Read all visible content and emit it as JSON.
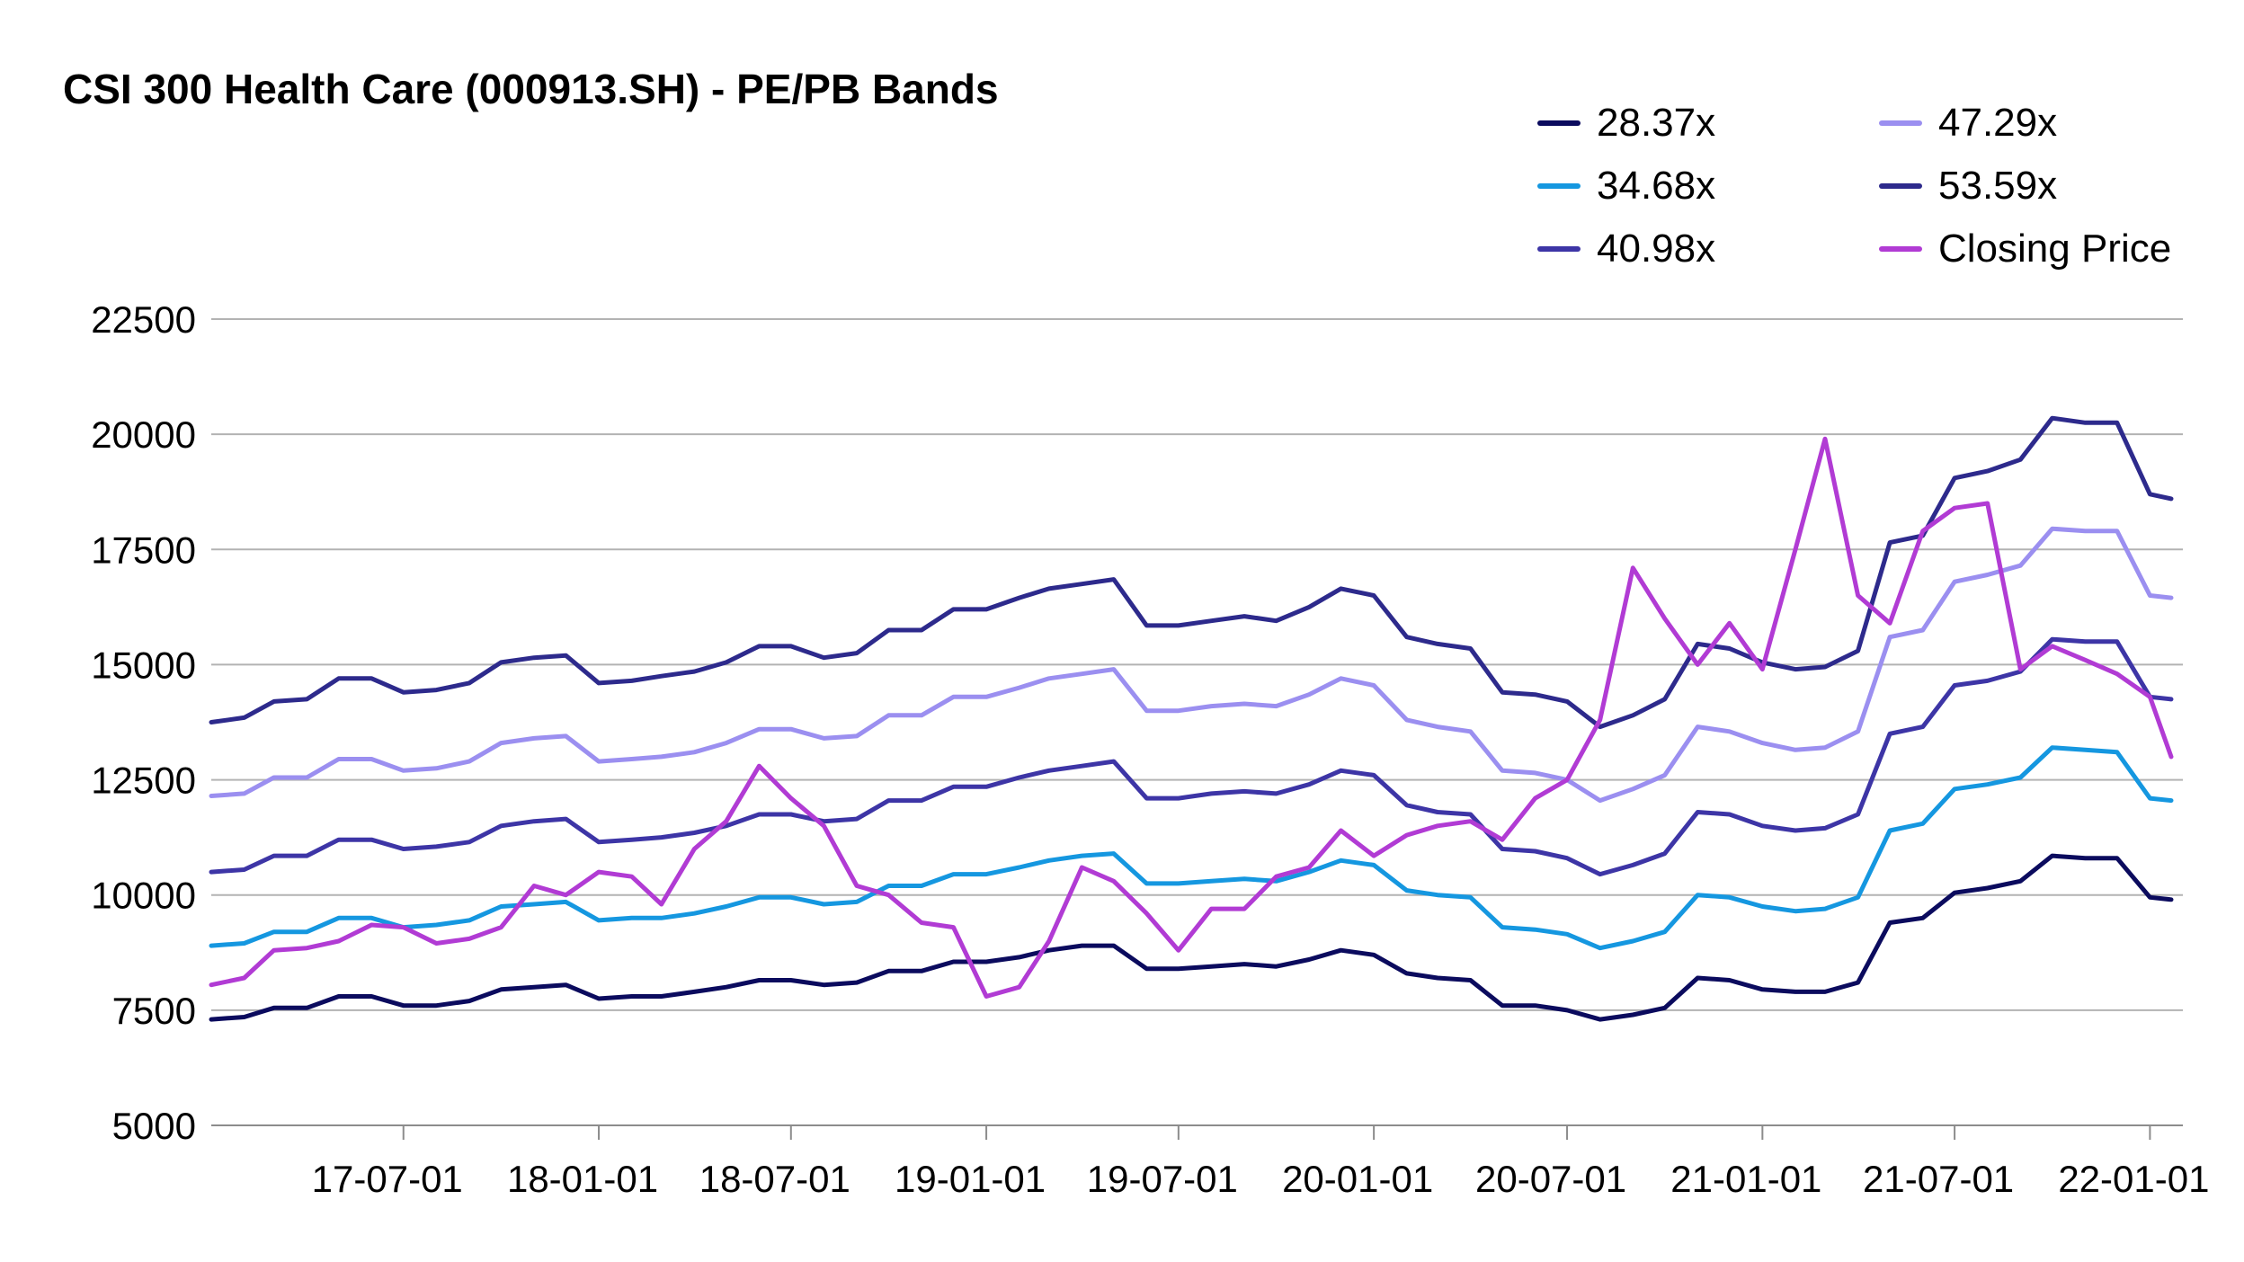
{
  "chart_data": {
    "type": "line",
    "title": "CSI 300 Health Care (000913.SH) - PE/PB Bands",
    "xlabel": "",
    "ylabel": "",
    "ylim": [
      5000,
      22500
    ],
    "yticks": [
      5000,
      7500,
      10000,
      12500,
      15000,
      17500,
      20000,
      22500
    ],
    "xlim": [
      "2017-01-01",
      "2022-02-01"
    ],
    "xticks": [
      "2017-07-01",
      "2018-01-01",
      "2018-07-01",
      "2019-01-01",
      "2019-07-01",
      "2020-01-01",
      "2020-07-01",
      "2021-01-01",
      "2021-07-01",
      "2022-01-01"
    ],
    "xtick_labels": [
      "17-07-01",
      "18-01-01",
      "18-07-01",
      "19-01-01",
      "19-07-01",
      "20-01-01",
      "20-07-01",
      "21-01-01",
      "21-07-01",
      "22-01-01"
    ],
    "grid": true,
    "legend_position": "top-right",
    "x": [
      "2017-01-01",
      "2017-02-01",
      "2017-03-01",
      "2017-04-01",
      "2017-05-01",
      "2017-06-01",
      "2017-07-01",
      "2017-08-01",
      "2017-09-01",
      "2017-10-01",
      "2017-11-01",
      "2017-12-01",
      "2018-01-01",
      "2018-02-01",
      "2018-03-01",
      "2018-04-01",
      "2018-05-01",
      "2018-06-01",
      "2018-07-01",
      "2018-08-01",
      "2018-09-01",
      "2018-10-01",
      "2018-11-01",
      "2018-12-01",
      "2019-01-01",
      "2019-02-01",
      "2019-03-01",
      "2019-04-01",
      "2019-05-01",
      "2019-06-01",
      "2019-07-01",
      "2019-08-01",
      "2019-09-01",
      "2019-10-01",
      "2019-11-01",
      "2019-12-01",
      "2020-01-01",
      "2020-02-01",
      "2020-03-01",
      "2020-04-01",
      "2020-05-01",
      "2020-06-01",
      "2020-07-01",
      "2020-08-01",
      "2020-09-01",
      "2020-10-01",
      "2020-11-01",
      "2020-12-01",
      "2021-01-01",
      "2021-02-01",
      "2021-03-01",
      "2021-04-01",
      "2021-05-01",
      "2021-06-01",
      "2021-07-01",
      "2021-08-01",
      "2021-09-01",
      "2021-10-01",
      "2021-11-01",
      "2021-12-01",
      "2022-01-01",
      "2022-01-21"
    ],
    "series": [
      {
        "name": "28.37x",
        "color": "#0b0b5e",
        "values": [
          7300,
          7350,
          7550,
          7550,
          7800,
          7800,
          7600,
          7600,
          7700,
          7950,
          8000,
          8050,
          7750,
          7800,
          7800,
          7900,
          8000,
          8150,
          8150,
          8050,
          8100,
          8350,
          8350,
          8550,
          8550,
          8650,
          8800,
          8900,
          8900,
          8400,
          8400,
          8450,
          8500,
          8450,
          8600,
          8800,
          8700,
          8300,
          8200,
          8150,
          7600,
          7600,
          7500,
          7300,
          7400,
          7550,
          8200,
          8150,
          7950,
          7900,
          7900,
          8100,
          9400,
          9500,
          10050,
          10150,
          10300,
          10850,
          10800,
          10800,
          9950,
          9900
        ]
      },
      {
        "name": "34.68x",
        "color": "#1597e0",
        "values": [
          8900,
          8950,
          9200,
          9200,
          9500,
          9500,
          9300,
          9350,
          9450,
          9750,
          9800,
          9850,
          9450,
          9500,
          9500,
          9600,
          9750,
          9950,
          9950,
          9800,
          9850,
          10200,
          10200,
          10450,
          10450,
          10600,
          10750,
          10850,
          10900,
          10250,
          10250,
          10300,
          10350,
          10300,
          10500,
          10750,
          10650,
          10100,
          10000,
          9950,
          9300,
          9250,
          9150,
          8850,
          9000,
          9200,
          10000,
          9950,
          9750,
          9650,
          9700,
          9950,
          11400,
          11550,
          12300,
          12400,
          12550,
          13200,
          13150,
          13100,
          12100,
          12050
        ]
      },
      {
        "name": "40.98x",
        "color": "#3d35a6",
        "values": [
          10500,
          10550,
          10850,
          10850,
          11200,
          11200,
          11000,
          11050,
          11150,
          11500,
          11600,
          11650,
          11150,
          11200,
          11250,
          11350,
          11500,
          11750,
          11750,
          11600,
          11650,
          12050,
          12050,
          12350,
          12350,
          12550,
          12700,
          12800,
          12900,
          12100,
          12100,
          12200,
          12250,
          12200,
          12400,
          12700,
          12600,
          11950,
          11800,
          11750,
          11000,
          10950,
          10800,
          10450,
          10650,
          10900,
          11800,
          11750,
          11500,
          11400,
          11450,
          11750,
          13500,
          13650,
          14550,
          14650,
          14850,
          15550,
          15500,
          15500,
          14300,
          14250
        ]
      },
      {
        "name": "47.29x",
        "color": "#9b8ff0",
        "values": [
          12150,
          12200,
          12550,
          12550,
          12950,
          12950,
          12700,
          12750,
          12900,
          13300,
          13400,
          13450,
          12900,
          12950,
          13000,
          13100,
          13300,
          13600,
          13600,
          13400,
          13450,
          13900,
          13900,
          14300,
          14300,
          14500,
          14700,
          14800,
          14900,
          14000,
          14000,
          14100,
          14150,
          14100,
          14350,
          14700,
          14550,
          13800,
          13650,
          13550,
          12700,
          12650,
          12500,
          12050,
          12300,
          12600,
          13650,
          13550,
          13300,
          13150,
          13200,
          13550,
          15600,
          15750,
          16800,
          16950,
          17150,
          17950,
          17900,
          17900,
          16500,
          16450
        ]
      },
      {
        "name": "53.59x",
        "color": "#2d2a8c",
        "values": [
          13750,
          13850,
          14200,
          14250,
          14700,
          14700,
          14400,
          14450,
          14600,
          15050,
          15150,
          15200,
          14600,
          14650,
          14750,
          14850,
          15050,
          15400,
          15400,
          15150,
          15250,
          15750,
          15750,
          16200,
          16200,
          16450,
          16650,
          16750,
          16850,
          15850,
          15850,
          15950,
          16050,
          15950,
          16250,
          16650,
          16500,
          15600,
          15450,
          15350,
          14400,
          14350,
          14200,
          13650,
          13900,
          14250,
          15450,
          15350,
          15050,
          14900,
          14950,
          15300,
          17650,
          17800,
          19050,
          19200,
          19450,
          20350,
          20250,
          20250,
          18700,
          18600
        ]
      },
      {
        "name": "Closing Price",
        "color": "#b13bd4",
        "values": [
          8050,
          8200,
          8800,
          8850,
          9000,
          9350,
          9300,
          8950,
          9050,
          9300,
          10200,
          10000,
          10500,
          10400,
          9800,
          11000,
          11600,
          12800,
          12100,
          11500,
          10200,
          10000,
          9400,
          9300,
          7800,
          8000,
          9000,
          10600,
          10300,
          9600,
          8800,
          9700,
          9700,
          10400,
          10600,
          11400,
          10850,
          11300,
          11500,
          11600,
          11200,
          12100,
          12500,
          13800,
          17100,
          16000,
          15000,
          15900,
          14900,
          17500,
          19900,
          16500,
          15900,
          17900,
          18400,
          18500,
          14900,
          15400,
          15100,
          14800,
          14300,
          13000
        ]
      }
    ]
  }
}
